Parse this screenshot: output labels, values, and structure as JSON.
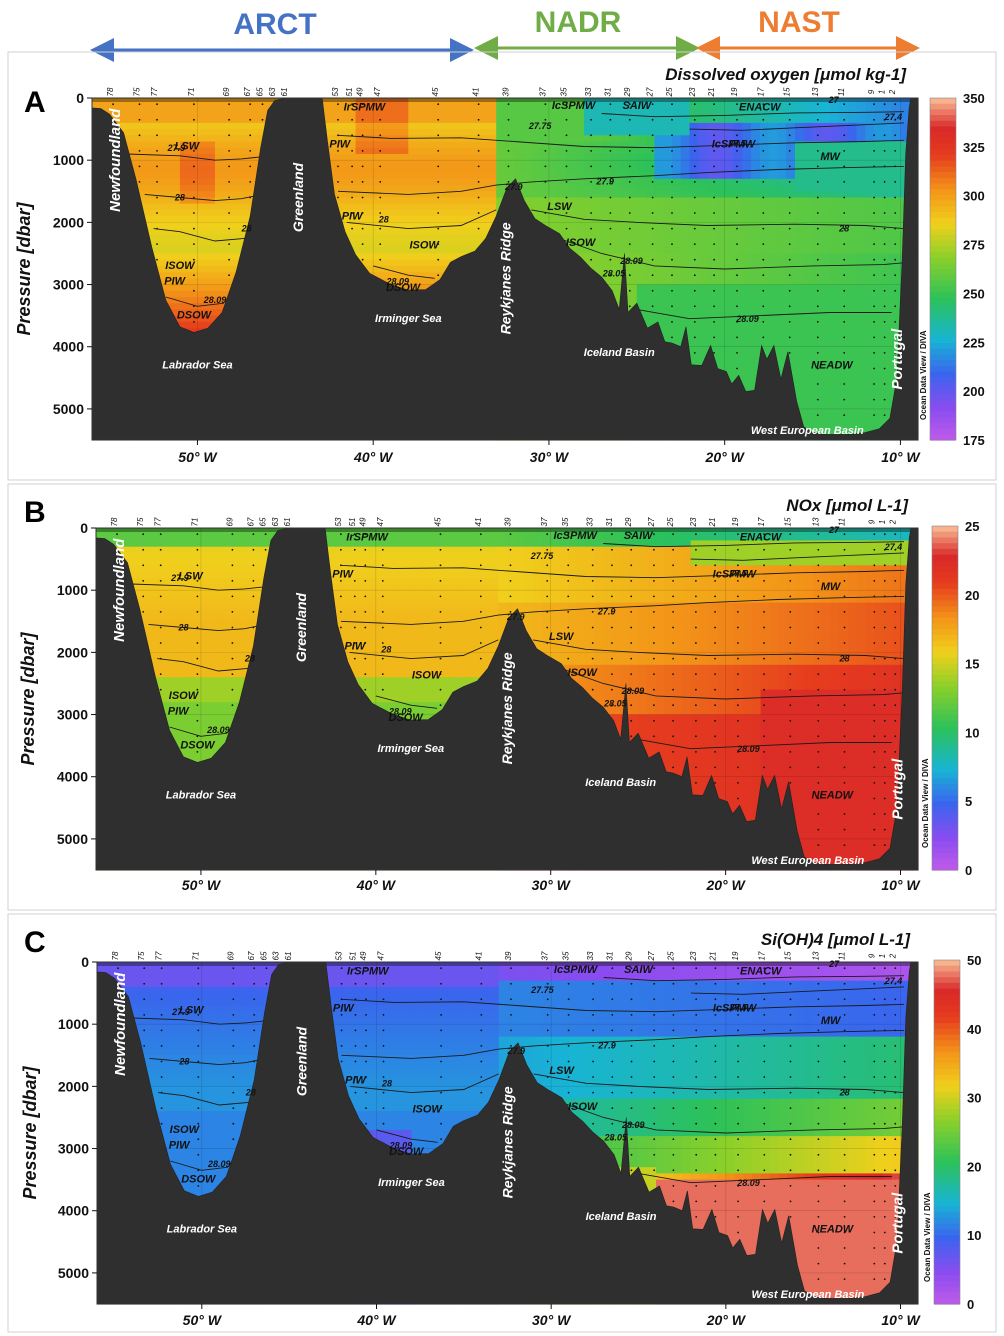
{
  "provinces": [
    {
      "label": "ARCT",
      "color": "#4472c4"
    },
    {
      "label": "NADR",
      "color": "#70ad47"
    },
    {
      "label": "NAST",
      "color": "#ed7d31"
    }
  ],
  "chart_data": [
    {
      "type": "heatmap",
      "panel": "A",
      "title": "Dissolved  oxygen [μmol kg-1]",
      "ylabel": "Pressure [dbar]",
      "xlim": [
        -56,
        -9
      ],
      "ylim": [
        5500,
        0
      ],
      "xticks": [
        "50° W",
        "40° W",
        "30° W",
        "20° W",
        "10° W"
      ],
      "yticks": [
        "0",
        "1000",
        "2000",
        "3000",
        "4000",
        "5000"
      ],
      "colorbar": {
        "ticks": [
          "350",
          "325",
          "300",
          "275",
          "250",
          "225",
          "200",
          "175"
        ],
        "range": [
          175,
          350
        ]
      },
      "water_masses": [
        "LSW",
        "LSW",
        "LSW",
        "PIW",
        "PIW",
        "ISOW",
        "ISOW",
        "DSOW",
        "DSOW",
        "PIW",
        "IrSPMW",
        "IrSPMW",
        "IcSPMW",
        "IcSPMW",
        "SAIW",
        "ENACW",
        "MW",
        "NEADW",
        "ISOW"
      ],
      "isopycnals": [
        "27.9",
        "28",
        "28",
        "28.09",
        "28.09",
        "27.9",
        "28",
        "28.09",
        "27.75",
        "27.9",
        "28",
        "28.05",
        "28.09",
        "27.5",
        "27",
        "27",
        "27.4"
      ],
      "geo_labels": [
        "Newfoundland",
        "Greenland",
        "Reykjanes Ridge",
        "Portugal",
        "Labrador Sea",
        "Irminger Sea",
        "Iceland Basin",
        "West European Basin"
      ],
      "watermark": "Ocean Data View / DIVA"
    },
    {
      "type": "heatmap",
      "panel": "B",
      "title": "NOx [μmol L-1]",
      "ylabel": "Pressure [dbar]",
      "xlim": [
        -56,
        -9
      ],
      "ylim": [
        5500,
        0
      ],
      "xticks": [
        "50° W",
        "40° W",
        "30° W",
        "20° W",
        "10° W"
      ],
      "yticks": [
        "0",
        "1000",
        "2000",
        "3000",
        "4000",
        "5000"
      ],
      "colorbar": {
        "ticks": [
          "25",
          "20",
          "15",
          "10",
          "5",
          "0"
        ],
        "range": [
          0,
          25
        ]
      },
      "watermark": "Ocean Data View / DIVA"
    },
    {
      "type": "heatmap",
      "panel": "C",
      "title": "Si(OH)4 [μmol L-1]",
      "ylabel": "Pressure [dbar]",
      "xlim": [
        -56,
        -9
      ],
      "ylim": [
        5500,
        0
      ],
      "xticks": [
        "50° W",
        "40° W",
        "30° W",
        "20° W",
        "10° W"
      ],
      "yticks": [
        "0",
        "1000",
        "2000",
        "3000",
        "4000",
        "5000"
      ],
      "colorbar": {
        "ticks": [
          "50",
          "40",
          "30",
          "20",
          "10",
          "0"
        ],
        "range": [
          0,
          50
        ]
      },
      "watermark": "Ocean Data View / DIVA"
    }
  ],
  "stations": [
    "78",
    "75",
    "77",
    "71",
    "69",
    "67",
    "65",
    "63",
    "61",
    "53",
    "51",
    "49",
    "47",
    "45",
    "41",
    "39",
    "37",
    "35",
    "33",
    "31",
    "29",
    "27",
    "25",
    "23",
    "21",
    "19",
    "17",
    "15",
    "13",
    "11",
    "9",
    "1",
    "2"
  ]
}
